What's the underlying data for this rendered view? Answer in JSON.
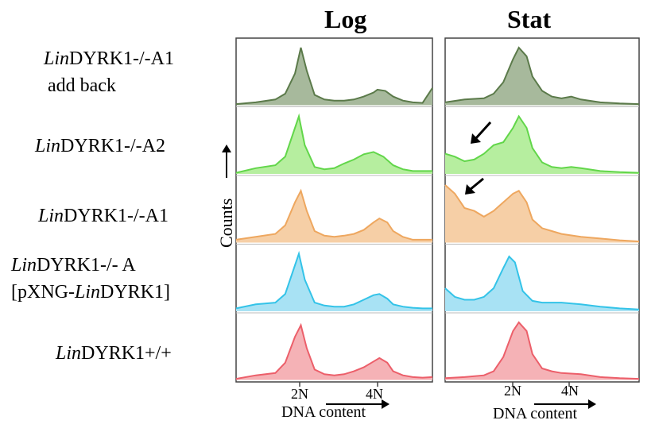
{
  "columns": [
    "Log",
    "Stat"
  ],
  "rows": [
    {
      "name_italic": "Lin",
      "name_rest": "DYRK1-/-A1",
      "line2": "add back",
      "line2_italic": "",
      "line2_rest": "",
      "color": "#5b7a4a",
      "fill": "#a7b99c"
    },
    {
      "name_italic": "Lin",
      "name_rest": "DYRK1-/-A2",
      "line2": "",
      "line2_italic": "",
      "line2_rest": "",
      "color": "#62d64a",
      "fill": "#b6ee9f"
    },
    {
      "name_italic": "Lin",
      "name_rest": "DYRK1-/-A1",
      "line2": "",
      "line2_italic": "",
      "line2_rest": "",
      "color": "#eea75f",
      "fill": "#f6cfa6"
    },
    {
      "name_italic": "Lin",
      "name_rest": "DYRK1-/- A",
      "line2": "",
      "line2_pre": "[pXNG-",
      "line2_italic": "Lin",
      "line2_rest": "DYRK1]",
      "color": "#33c3e8",
      "fill": "#a8e2f4"
    },
    {
      "name_italic": "Lin",
      "name_rest": "DYRK1+/+",
      "line2": "",
      "line2_italic": "",
      "line2_rest": "",
      "color": "#ec5f6a",
      "fill": "#f5b2b6"
    }
  ],
  "axis": {
    "ticks": [
      "2N",
      "4N"
    ],
    "xlabel": "DNA content",
    "ylabel": "Counts"
  },
  "chart_data": [
    {
      "type": "area",
      "title": "Log",
      "xlabel": "DNA content",
      "ylabel": "Counts",
      "x_ticks": [
        "2N",
        "4N"
      ],
      "grid": false,
      "series": [
        {
          "name": "LinDYRK1-/-A1 add back",
          "x": [
            0,
            0.1,
            0.2,
            0.25,
            0.3,
            0.33,
            0.36,
            0.4,
            0.45,
            0.5,
            0.55,
            0.6,
            0.65,
            0.7,
            0.72,
            0.76,
            0.8,
            0.85,
            0.9,
            0.95,
            1.0
          ],
          "values": [
            0.02,
            0.05,
            0.1,
            0.2,
            0.55,
            1.0,
            0.6,
            0.18,
            0.1,
            0.08,
            0.08,
            0.1,
            0.15,
            0.22,
            0.27,
            0.25,
            0.15,
            0.08,
            0.05,
            0.04,
            0.3
          ]
        },
        {
          "name": "LinDYRK1-/-A2",
          "x": [
            0,
            0.1,
            0.2,
            0.25,
            0.3,
            0.32,
            0.35,
            0.4,
            0.45,
            0.5,
            0.55,
            0.6,
            0.65,
            0.7,
            0.75,
            0.8,
            0.85,
            0.9,
            0.95,
            1.0
          ],
          "values": [
            0.02,
            0.1,
            0.15,
            0.3,
            0.8,
            1.0,
            0.5,
            0.12,
            0.08,
            0.1,
            0.18,
            0.25,
            0.34,
            0.38,
            0.3,
            0.15,
            0.08,
            0.05,
            0.05,
            0.05
          ]
        },
        {
          "name": "LinDYRK1-/-A1",
          "x": [
            0,
            0.1,
            0.2,
            0.25,
            0.3,
            0.33,
            0.36,
            0.4,
            0.45,
            0.5,
            0.55,
            0.6,
            0.65,
            0.7,
            0.73,
            0.77,
            0.8,
            0.85,
            0.9,
            0.95,
            1.0
          ],
          "values": [
            0.05,
            0.1,
            0.15,
            0.3,
            0.7,
            0.9,
            0.55,
            0.2,
            0.12,
            0.1,
            0.12,
            0.15,
            0.22,
            0.35,
            0.42,
            0.35,
            0.2,
            0.1,
            0.05,
            0.05,
            0.05
          ]
        },
        {
          "name": "LinDYRK1-/- A [pXNG-LinDYRK1]",
          "x": [
            0,
            0.1,
            0.2,
            0.25,
            0.3,
            0.32,
            0.35,
            0.4,
            0.45,
            0.5,
            0.55,
            0.6,
            0.65,
            0.7,
            0.73,
            0.77,
            0.8,
            0.85,
            0.9,
            0.95,
            1.0
          ],
          "values": [
            0.05,
            0.12,
            0.15,
            0.3,
            0.8,
            1.0,
            0.55,
            0.15,
            0.1,
            0.08,
            0.08,
            0.12,
            0.2,
            0.28,
            0.3,
            0.22,
            0.12,
            0.08,
            0.06,
            0.05,
            0.05
          ]
        },
        {
          "name": "LinDYRK1+/+",
          "x": [
            0,
            0.1,
            0.2,
            0.25,
            0.3,
            0.33,
            0.36,
            0.4,
            0.45,
            0.5,
            0.55,
            0.6,
            0.65,
            0.7,
            0.73,
            0.77,
            0.8,
            0.85,
            0.9,
            0.95,
            1.0
          ],
          "values": [
            0.02,
            0.08,
            0.12,
            0.3,
            0.75,
            0.95,
            0.55,
            0.18,
            0.1,
            0.08,
            0.1,
            0.15,
            0.22,
            0.32,
            0.38,
            0.3,
            0.15,
            0.08,
            0.05,
            0.04,
            0.05
          ]
        }
      ]
    },
    {
      "type": "area",
      "title": "Stat",
      "xlabel": "DNA content",
      "ylabel": "Counts",
      "x_ticks": [
        "2N",
        "4N"
      ],
      "grid": false,
      "series": [
        {
          "name": "LinDYRK1-/-A1 add back",
          "x": [
            0,
            0.1,
            0.2,
            0.25,
            0.3,
            0.35,
            0.38,
            0.42,
            0.45,
            0.5,
            0.55,
            0.6,
            0.65,
            0.7,
            0.8,
            0.9,
            1.0
          ],
          "values": [
            0.05,
            0.1,
            0.12,
            0.2,
            0.4,
            0.8,
            1.0,
            0.85,
            0.5,
            0.25,
            0.15,
            0.12,
            0.15,
            0.1,
            0.05,
            0.03,
            0.02
          ]
        },
        {
          "name": "LinDYRK1-/-A2",
          "x": [
            0,
            0.05,
            0.1,
            0.15,
            0.2,
            0.25,
            0.3,
            0.35,
            0.38,
            0.42,
            0.45,
            0.5,
            0.55,
            0.6,
            0.65,
            0.7,
            0.8,
            0.9,
            1.0
          ],
          "values": [
            0.35,
            0.3,
            0.22,
            0.25,
            0.35,
            0.5,
            0.55,
            0.8,
            1.0,
            0.8,
            0.45,
            0.2,
            0.12,
            0.1,
            0.12,
            0.1,
            0.05,
            0.03,
            0.02
          ]
        },
        {
          "name": "LinDYRK1-/-A1",
          "x": [
            0,
            0.05,
            0.1,
            0.15,
            0.2,
            0.25,
            0.3,
            0.35,
            0.38,
            0.42,
            0.45,
            0.5,
            0.55,
            0.6,
            0.7,
            0.8,
            0.9,
            1.0
          ],
          "values": [
            1.0,
            0.85,
            0.6,
            0.55,
            0.45,
            0.55,
            0.7,
            0.85,
            0.9,
            0.7,
            0.4,
            0.25,
            0.2,
            0.15,
            0.1,
            0.07,
            0.04,
            0.02
          ]
        },
        {
          "name": "LinDYRK1-/- A [pXNG-LinDYRK1]",
          "x": [
            0,
            0.05,
            0.1,
            0.15,
            0.2,
            0.25,
            0.3,
            0.33,
            0.36,
            0.4,
            0.45,
            0.5,
            0.6,
            0.7,
            0.8,
            0.9,
            1.0
          ],
          "values": [
            0.4,
            0.25,
            0.2,
            0.2,
            0.25,
            0.4,
            0.75,
            0.95,
            0.85,
            0.35,
            0.18,
            0.15,
            0.15,
            0.12,
            0.08,
            0.05,
            0.03
          ]
        },
        {
          "name": "LinDYRK1+/+",
          "x": [
            0,
            0.1,
            0.2,
            0.25,
            0.3,
            0.35,
            0.38,
            0.42,
            0.45,
            0.5,
            0.55,
            0.6,
            0.7,
            0.8,
            0.9,
            1.0
          ],
          "values": [
            0.03,
            0.05,
            0.08,
            0.15,
            0.4,
            0.85,
            1.0,
            0.85,
            0.45,
            0.2,
            0.15,
            0.12,
            0.1,
            0.05,
            0.03,
            0.02
          ]
        }
      ]
    }
  ],
  "arrows": [
    {
      "panel": 1,
      "row": 1
    },
    {
      "panel": 1,
      "row": 2
    }
  ]
}
